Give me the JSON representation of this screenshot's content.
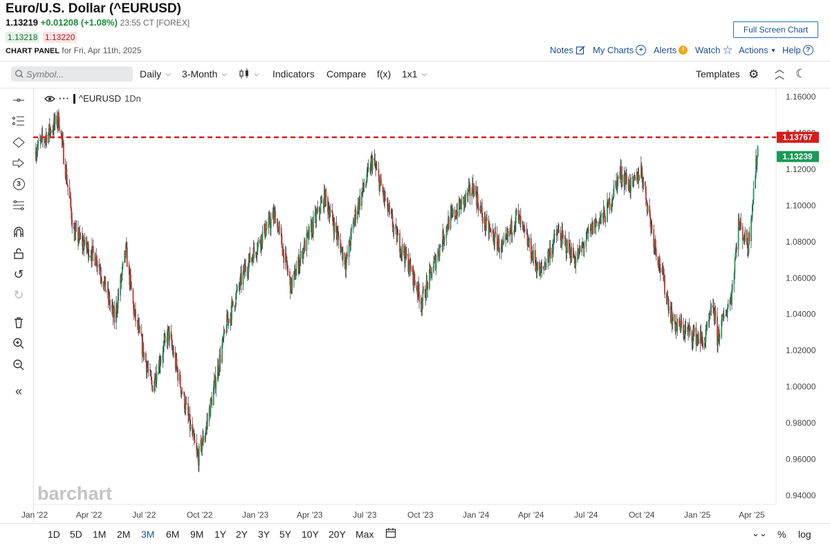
{
  "header": {
    "title": "Euro/U.S. Dollar (^EURUSD)",
    "last": "1.13219",
    "change": "+0.01208 (+1.08%)",
    "time": "23:55 CT [FOREX]",
    "bid": "1.13218",
    "ask": "1.13220",
    "panel_label": "CHART PANEL",
    "panel_date": "for Fri, Apr 11th, 2025"
  },
  "top_links": {
    "full_screen": "Full Screen Chart",
    "notes": "Notes",
    "my_charts": "My Charts",
    "alerts": "Alerts",
    "watch": "Watch",
    "actions": "Actions",
    "help": "Help"
  },
  "toolbar": {
    "symbol_placeholder": "Symbol...",
    "interval": "Daily",
    "period": "3-Month",
    "indicators": "Indicators",
    "compare": "Compare",
    "fx": "f(x)",
    "layout": "1x1",
    "templates": "Templates"
  },
  "legend": {
    "symbol": "^EURUSD",
    "interval": "1Dn"
  },
  "watermark": "barchart",
  "ranges": [
    "1D",
    "5D",
    "1M",
    "2M",
    "3M",
    "6M",
    "9M",
    "1Y",
    "2Y",
    "3Y",
    "5Y",
    "10Y",
    "20Y",
    "Max"
  ],
  "active_range": "3M",
  "bottom_right": {
    "percent": "%",
    "log": "log"
  },
  "icons": [
    "eye-icon",
    "search-icon",
    "candlestick-icon",
    "gear-icon",
    "chevron-up-icon",
    "moon-icon",
    "magnet-icon",
    "lock-icon",
    "undo-icon",
    "redo-icon",
    "trash-icon",
    "zoom-in-icon",
    "zoom-out-icon",
    "collapse-icon",
    "calendar-icon",
    "pencil-icon",
    "plus-circle-icon",
    "star-icon"
  ],
  "colors": {
    "up": "#1a9a55",
    "down": "#d0312d",
    "price_line": "#d81b1b",
    "link": "#1d4f91"
  },
  "chart_data": {
    "type": "line",
    "series": [
      {
        "name": "^EURUSD",
        "x": [
          "2022-01-01",
          "2022-02-10",
          "2022-03-07",
          "2022-04-15",
          "2022-05-13",
          "2022-06-01",
          "2022-06-15",
          "2022-07-14",
          "2022-08-10",
          "2022-09-28",
          "2022-10-10",
          "2022-11-15",
          "2022-12-15",
          "2023-01-15",
          "2023-02-03",
          "2023-03-01",
          "2023-03-20",
          "2023-04-26",
          "2023-05-31",
          "2023-06-15",
          "2023-07-14",
          "2023-08-20",
          "2023-09-15",
          "2023-10-03",
          "2023-11-15",
          "2023-12-28",
          "2024-01-15",
          "2024-02-14",
          "2024-03-08",
          "2024-04-16",
          "2024-05-15",
          "2024-06-14",
          "2024-07-15",
          "2024-08-02",
          "2024-08-26",
          "2024-09-15",
          "2024-09-30",
          "2024-10-20",
          "2024-11-22",
          "2025-01-13",
          "2025-01-27",
          "2025-02-03",
          "2025-02-26",
          "2025-03-10",
          "2025-03-26",
          "2025-04-03",
          "2025-04-11"
        ],
        "y": [
          1.13,
          1.148,
          1.085,
          1.07,
          1.037,
          1.075,
          1.04,
          1.0,
          1.03,
          0.96,
          0.975,
          1.035,
          1.065,
          1.085,
          1.095,
          1.055,
          1.075,
          1.105,
          1.068,
          1.095,
          1.125,
          1.085,
          1.065,
          1.047,
          1.09,
          1.11,
          1.09,
          1.075,
          1.095,
          1.062,
          1.085,
          1.07,
          1.09,
          1.095,
          1.118,
          1.11,
          1.12,
          1.083,
          1.035,
          1.025,
          1.045,
          1.027,
          1.05,
          1.09,
          1.078,
          1.105,
          1.132
        ]
      }
    ],
    "xlabel": "",
    "ylabel": "",
    "ylim": [
      0.935,
      1.165
    ],
    "y_ticks": [
      "1.16000",
      "1.14000",
      "1.12000",
      "1.10000",
      "1.08000",
      "1.06000",
      "1.04000",
      "1.02000",
      "1.00000",
      "0.98000",
      "0.96000",
      "0.94000"
    ],
    "x_ticks": [
      {
        "label": "Jan '22",
        "date": "2022-01-01"
      },
      {
        "label": "Apr '22",
        "date": "2022-04-01"
      },
      {
        "label": "Jul '22",
        "date": "2022-07-01"
      },
      {
        "label": "Oct '22",
        "date": "2022-10-01"
      },
      {
        "label": "Jan '23",
        "date": "2023-01-01"
      },
      {
        "label": "Apr '23",
        "date": "2023-04-01"
      },
      {
        "label": "Jul '23",
        "date": "2023-07-01"
      },
      {
        "label": "Oct '23",
        "date": "2023-10-01"
      },
      {
        "label": "Jan '24",
        "date": "2024-01-01"
      },
      {
        "label": "Apr '24",
        "date": "2024-04-01"
      },
      {
        "label": "Jul '24",
        "date": "2024-07-01"
      },
      {
        "label": "Oct '24",
        "date": "2024-10-01"
      },
      {
        "label": "Jan '25",
        "date": "2025-01-01"
      },
      {
        "label": "Apr '25",
        "date": "2025-04-01"
      }
    ],
    "price_lines": [
      {
        "value": 1.13767,
        "label": "1.13767",
        "color": "#d81b1b",
        "dashed": true
      },
      {
        "value": 1.13239,
        "label": "1.13239",
        "color": "#1a9a55",
        "dashed": false
      }
    ],
    "grid": false
  }
}
